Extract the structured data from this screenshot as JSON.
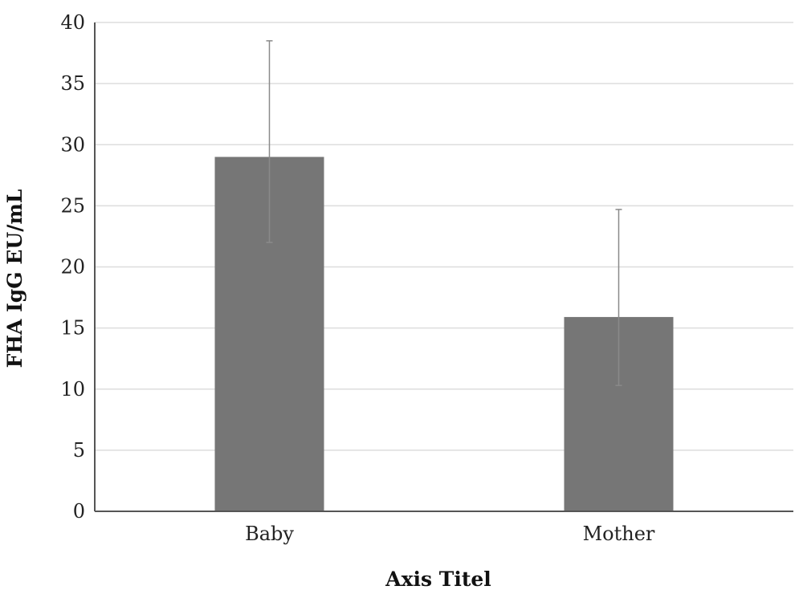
{
  "chart_data": {
    "type": "bar",
    "categories": [
      "Baby",
      "Mother"
    ],
    "values": [
      29,
      15.9
    ],
    "error_bars": [
      {
        "low": 22,
        "high": 38.5
      },
      {
        "low": 10.3,
        "high": 24.7
      }
    ],
    "title": "",
    "xlabel": "Axis Titel",
    "ylabel": "FHA IgG EU/mL",
    "ylim": [
      0,
      40
    ],
    "yticks": [
      0,
      5,
      10,
      15,
      20,
      25,
      30,
      35,
      40
    ],
    "grid": true,
    "legend": "none",
    "colors": {
      "bar": "#767676",
      "gridline": "#dddddd",
      "axis": "#555555",
      "error_bar": "#8a8a8a"
    }
  }
}
